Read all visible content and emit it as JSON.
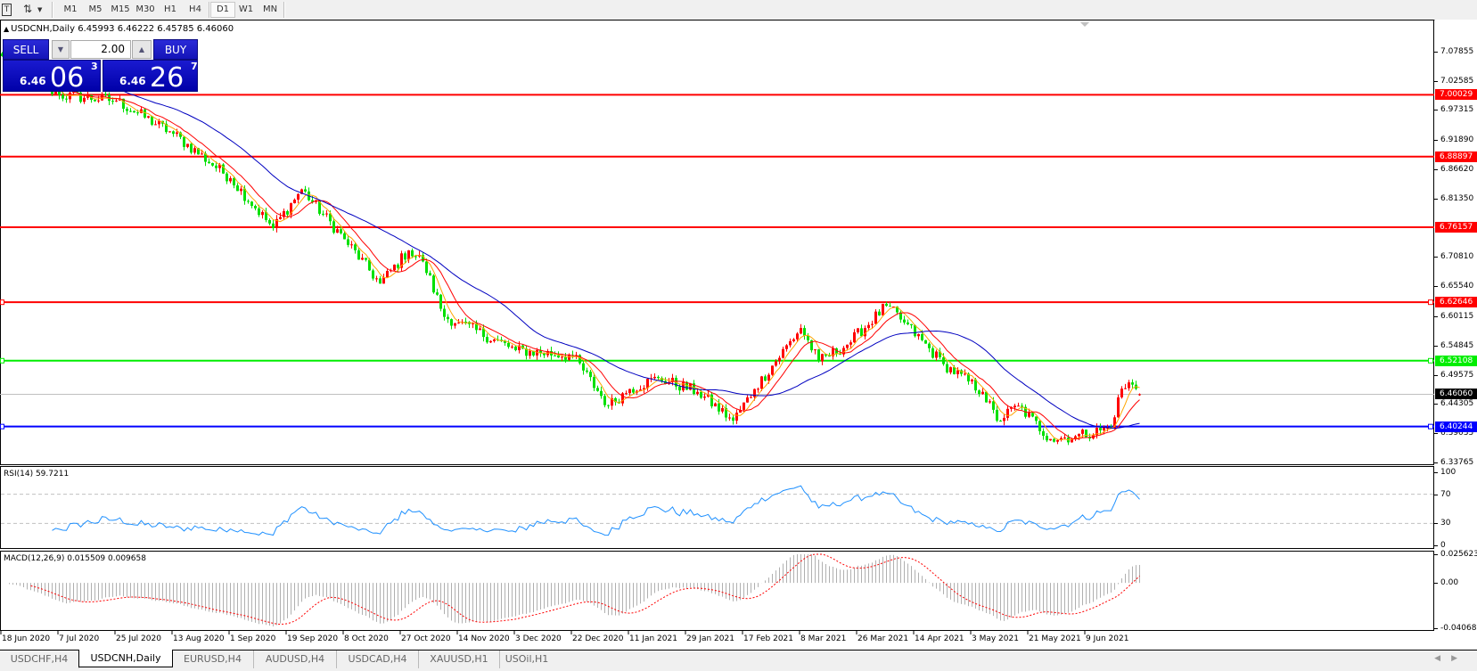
{
  "toolbar": {
    "timeframes": [
      "M1",
      "M5",
      "M15",
      "M30",
      "H1",
      "H4",
      "D1",
      "W1",
      "MN"
    ],
    "active_timeframe": "D1",
    "icons": [
      "text-tool-icon",
      "line-tools-icon",
      "dropdown-arrow-icon"
    ]
  },
  "chart": {
    "symbol_period": "USDCNH,Daily",
    "ohlc": "6.45993 6.46222 6.45785 6.46060"
  },
  "trade_panel": {
    "sell_label": "SELL",
    "buy_label": "BUY",
    "lot": "2.00",
    "sell_price": {
      "prefix": "6.46",
      "big": "06",
      "sup": "3"
    },
    "buy_price": {
      "prefix": "6.46",
      "big": "26",
      "sup": "7"
    }
  },
  "chart_data": {
    "type": "candlestick",
    "price_axis": [
      "7.07855",
      "7.02585",
      "6.97315",
      "6.91890",
      "6.86620",
      "6.81350",
      "6.70810",
      "6.65540",
      "6.60115",
      "6.54845",
      "6.49575",
      "6.44305",
      "6.39035",
      "6.33765"
    ],
    "price_range": [
      6.33765,
      7.07855
    ],
    "date_axis": [
      "18 Jun 2020",
      "7 Jul 2020",
      "25 Jul 2020",
      "13 Aug 2020",
      "1 Sep 2020",
      "19 Sep 2020",
      "8 Oct 2020",
      "27 Oct 2020",
      "14 Nov 2020",
      "3 Dec 2020",
      "22 Dec 2020",
      "11 Jan 2021",
      "29 Jan 2021",
      "17 Feb 2021",
      "8 Mar 2021",
      "26 Mar 2021",
      "14 Apr 2021",
      "3 May 2021",
      "21 May 2021",
      "9 Jun 2021"
    ],
    "close_anchors": [
      {
        "date": "18 Jun 2020",
        "close": 7.07
      },
      {
        "date": "7 Jul 2020",
        "close": 7.0
      },
      {
        "date": "25 Jul 2020",
        "close": 6.99
      },
      {
        "date": "13 Aug 2020",
        "close": 6.93
      },
      {
        "date": "1 Sep 2020",
        "close": 6.85
      },
      {
        "date": "15 Sep 2020",
        "close": 6.76
      },
      {
        "date": "24 Sep 2020",
        "close": 6.83
      },
      {
        "date": "8 Oct 2020",
        "close": 6.74
      },
      {
        "date": "20 Oct 2020",
        "close": 6.66
      },
      {
        "date": "29 Oct 2020",
        "close": 6.72
      },
      {
        "date": "3 Nov 2020",
        "close": 6.7
      },
      {
        "date": "9 Nov 2020",
        "close": 6.6
      },
      {
        "date": "14 Nov 2020",
        "close": 6.59
      },
      {
        "date": "3 Dec 2020",
        "close": 6.54
      },
      {
        "date": "22 Dec 2020",
        "close": 6.53
      },
      {
        "date": "3 Jan 2021",
        "close": 6.44
      },
      {
        "date": "11 Jan 2021",
        "close": 6.47
      },
      {
        "date": "20 Jan 2021",
        "close": 6.49
      },
      {
        "date": "2 Feb 2021",
        "close": 6.465
      },
      {
        "date": "14 Feb 2021",
        "close": 6.413
      },
      {
        "date": "20 Feb 2021",
        "close": 6.47
      },
      {
        "date": "8 Mar 2021",
        "close": 6.58
      },
      {
        "date": "14 Mar 2021",
        "close": 6.52
      },
      {
        "date": "23 Mar 2021",
        "close": 6.55
      },
      {
        "date": "4 Apr 2021",
        "close": 6.62
      },
      {
        "date": "11 Apr 2021",
        "close": 6.59
      },
      {
        "date": "23 Apr 2021",
        "close": 6.515
      },
      {
        "date": "6 May 2021",
        "close": 6.465
      },
      {
        "date": "11 May 2021",
        "close": 6.413
      },
      {
        "date": "18 May 2021",
        "close": 6.44
      },
      {
        "date": "28 May 2021",
        "close": 6.38
      },
      {
        "date": "6 Jun 2021",
        "close": 6.385
      },
      {
        "date": "17 Jun 2021",
        "close": 6.4
      },
      {
        "date": "20 Jun 2021",
        "close": 6.455
      },
      {
        "date": "23 Jun 2021",
        "close": 6.482
      },
      {
        "date": "27 Jun 2021",
        "close": 6.4606
      }
    ],
    "current_price": "6.46060",
    "levels": [
      {
        "price": "7.00029",
        "color": "#ff0000"
      },
      {
        "price": "6.88897",
        "color": "#ff0000"
      },
      {
        "price": "6.76157",
        "color": "#ff0000"
      },
      {
        "price": "6.62646",
        "color": "#ff0000"
      },
      {
        "price": "6.52108",
        "color": "#00ee00"
      },
      {
        "price": "6.40244",
        "color": "#0000ff"
      }
    ],
    "moving_averages": [
      {
        "color": "#ffa500",
        "period": 5
      },
      {
        "color": "#ff0000",
        "period": 10
      },
      {
        "color": "#0000c0",
        "period": 30
      }
    ],
    "rsi": {
      "label": "RSI(14) 59.7211",
      "levels": [
        "100",
        "70",
        "30",
        "0"
      ],
      "color": "#1e90ff"
    },
    "macd": {
      "label": "MACD(12,26,9) 0.015509 0.009658",
      "axis": [
        "0.025623",
        "0.00",
        "-0.040687"
      ],
      "range": [
        -0.040687,
        0.025623
      ]
    },
    "colors": {
      "bull": "#ff0000",
      "bear": "#00e000",
      "grid_level": "#c0c0c0",
      "macd_hist": "#b0b0b0",
      "macd_signal": "#ff0000"
    }
  },
  "tabs": [
    "USDCHF,H4",
    "USDCNH,Daily",
    "EURUSD,H4",
    "AUDUSD,H4",
    "USDCAD,H4",
    "XAUUSD,H1",
    "USOil,H1"
  ],
  "active_tab": "USDCNH,Daily"
}
